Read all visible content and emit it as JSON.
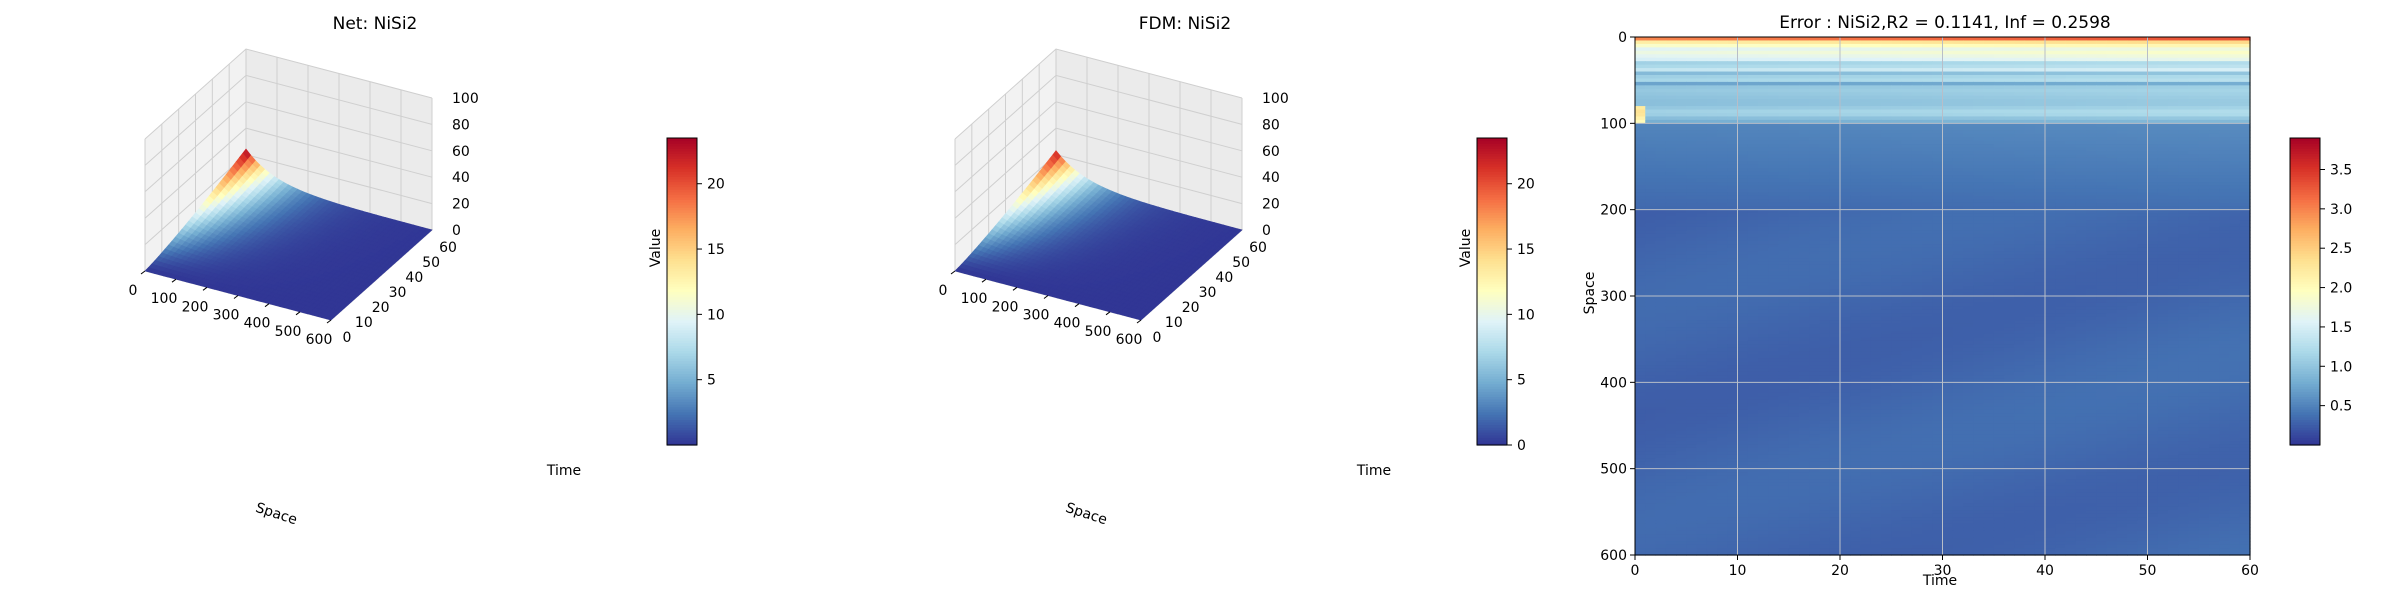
{
  "chart_data": [
    {
      "type": "surface3d",
      "title": "Net: NiSi2",
      "xlabel": "Space",
      "ylabel": "Time",
      "zlabel": "Value",
      "x_ticks": [
        "0",
        "100",
        "200",
        "300",
        "400",
        "500",
        "600"
      ],
      "y_ticks": [
        "0",
        "10",
        "20",
        "30",
        "40",
        "50",
        "60"
      ],
      "z_ticks": [
        "0",
        "20",
        "40",
        "60",
        "80",
        "100"
      ],
      "xlim": [
        0,
        600
      ],
      "ylim": [
        0,
        60
      ],
      "zlim": [
        0,
        100
      ],
      "peak": {
        "space": 0,
        "time": 60,
        "value": 23
      },
      "colorbar": {
        "min": 0,
        "max": 23.5,
        "ticks": [
          "5",
          "10",
          "15",
          "20"
        ],
        "tick_values": [
          5,
          10,
          15,
          20
        ],
        "colormap": "RdYlBu_r"
      }
    },
    {
      "type": "surface3d",
      "title": "FDM: NiSi2",
      "xlabel": "Space",
      "ylabel": "Time",
      "zlabel": "Value",
      "x_ticks": [
        "0",
        "100",
        "200",
        "300",
        "400",
        "500",
        "600"
      ],
      "y_ticks": [
        "0",
        "10",
        "20",
        "30",
        "40",
        "50",
        "60"
      ],
      "z_ticks": [
        "0",
        "20",
        "40",
        "60",
        "80",
        "100"
      ],
      "xlim": [
        0,
        600
      ],
      "ylim": [
        0,
        60
      ],
      "zlim": [
        0,
        100
      ],
      "peak": {
        "space": 0,
        "time": 60,
        "value": 23
      },
      "colorbar": {
        "min": 0,
        "max": 23.5,
        "ticks": [
          "0",
          "5",
          "10",
          "15",
          "20"
        ],
        "tick_values": [
          0,
          5,
          10,
          15,
          20
        ],
        "colormap": "RdYlBu_r"
      }
    },
    {
      "type": "heatmap",
      "title": "Error : NiSi2,R2 = 0.1141, Inf = 0.2598",
      "xlabel": "Time",
      "ylabel": "Space",
      "x_ticks": [
        "0",
        "10",
        "20",
        "30",
        "40",
        "50",
        "60"
      ],
      "y_ticks": [
        "0",
        "100",
        "200",
        "300",
        "400",
        "500",
        "600"
      ],
      "xlim": [
        0,
        60
      ],
      "ylim": [
        600,
        0
      ],
      "grid": true,
      "colorbar": {
        "min": 0,
        "max": 3.9,
        "ticks": [
          "0.5",
          "1.0",
          "1.5",
          "2.0",
          "2.5",
          "3.0",
          "3.5"
        ],
        "tick_values": [
          0.5,
          1.0,
          1.5,
          2.0,
          2.5,
          3.0,
          3.5
        ],
        "colormap": "RdYlBu_r"
      }
    }
  ]
}
